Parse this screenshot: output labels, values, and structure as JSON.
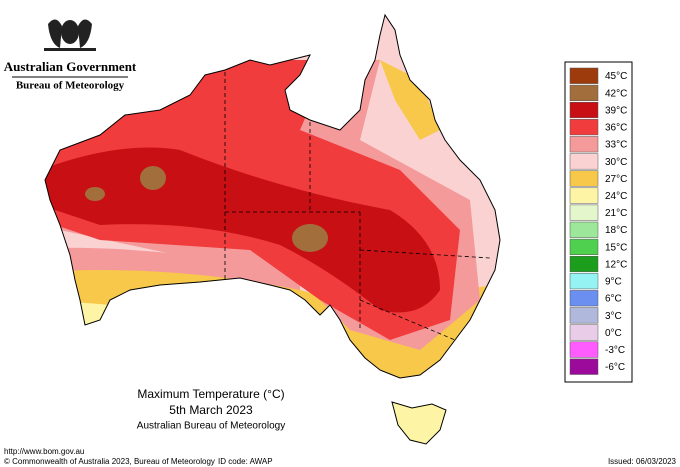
{
  "header": {
    "government": "Australian Government",
    "bureau": "Bureau of Meteorology"
  },
  "legend": [
    {
      "label": "45°C",
      "color": "#9e3b0c"
    },
    {
      "label": "42°C",
      "color": "#a26f3c"
    },
    {
      "label": "39°C",
      "color": "#c80f14"
    },
    {
      "label": "36°C",
      "color": "#f03c3c"
    },
    {
      "label": "33°C",
      "color": "#f59a9a"
    },
    {
      "label": "30°C",
      "color": "#fbd2d2"
    },
    {
      "label": "27°C",
      "color": "#f7c84a"
    },
    {
      "label": "24°C",
      "color": "#fdf5a5"
    },
    {
      "label": "21°C",
      "color": "#e4f6cc"
    },
    {
      "label": "18°C",
      "color": "#9de79a"
    },
    {
      "label": "15°C",
      "color": "#4fd04f"
    },
    {
      "label": "12°C",
      "color": "#1c9e1c"
    },
    {
      "label": "9°C",
      "color": "#96f3f3"
    },
    {
      "label": "6°C",
      "color": "#6a8ff0"
    },
    {
      "label": "3°C",
      "color": "#b0b8dc"
    },
    {
      "label": "0°C",
      "color": "#e8cce8"
    },
    {
      "label": "-3°C",
      "color": "#ff5cff"
    },
    {
      "label": "-6°C",
      "color": "#9c0a9c"
    }
  ],
  "title": {
    "line1": "Maximum Temperature (°C)",
    "line2": "5th March 2023",
    "line3": "Australian Bureau of Meteorology"
  },
  "footer": {
    "url": "http://www.bom.gov.au",
    "copyright": "© Commonwealth of Australia 2023, Bureau of Meteorology",
    "id_code": "ID code: AWAP",
    "issued": "Issued: 06/03/2023"
  }
}
